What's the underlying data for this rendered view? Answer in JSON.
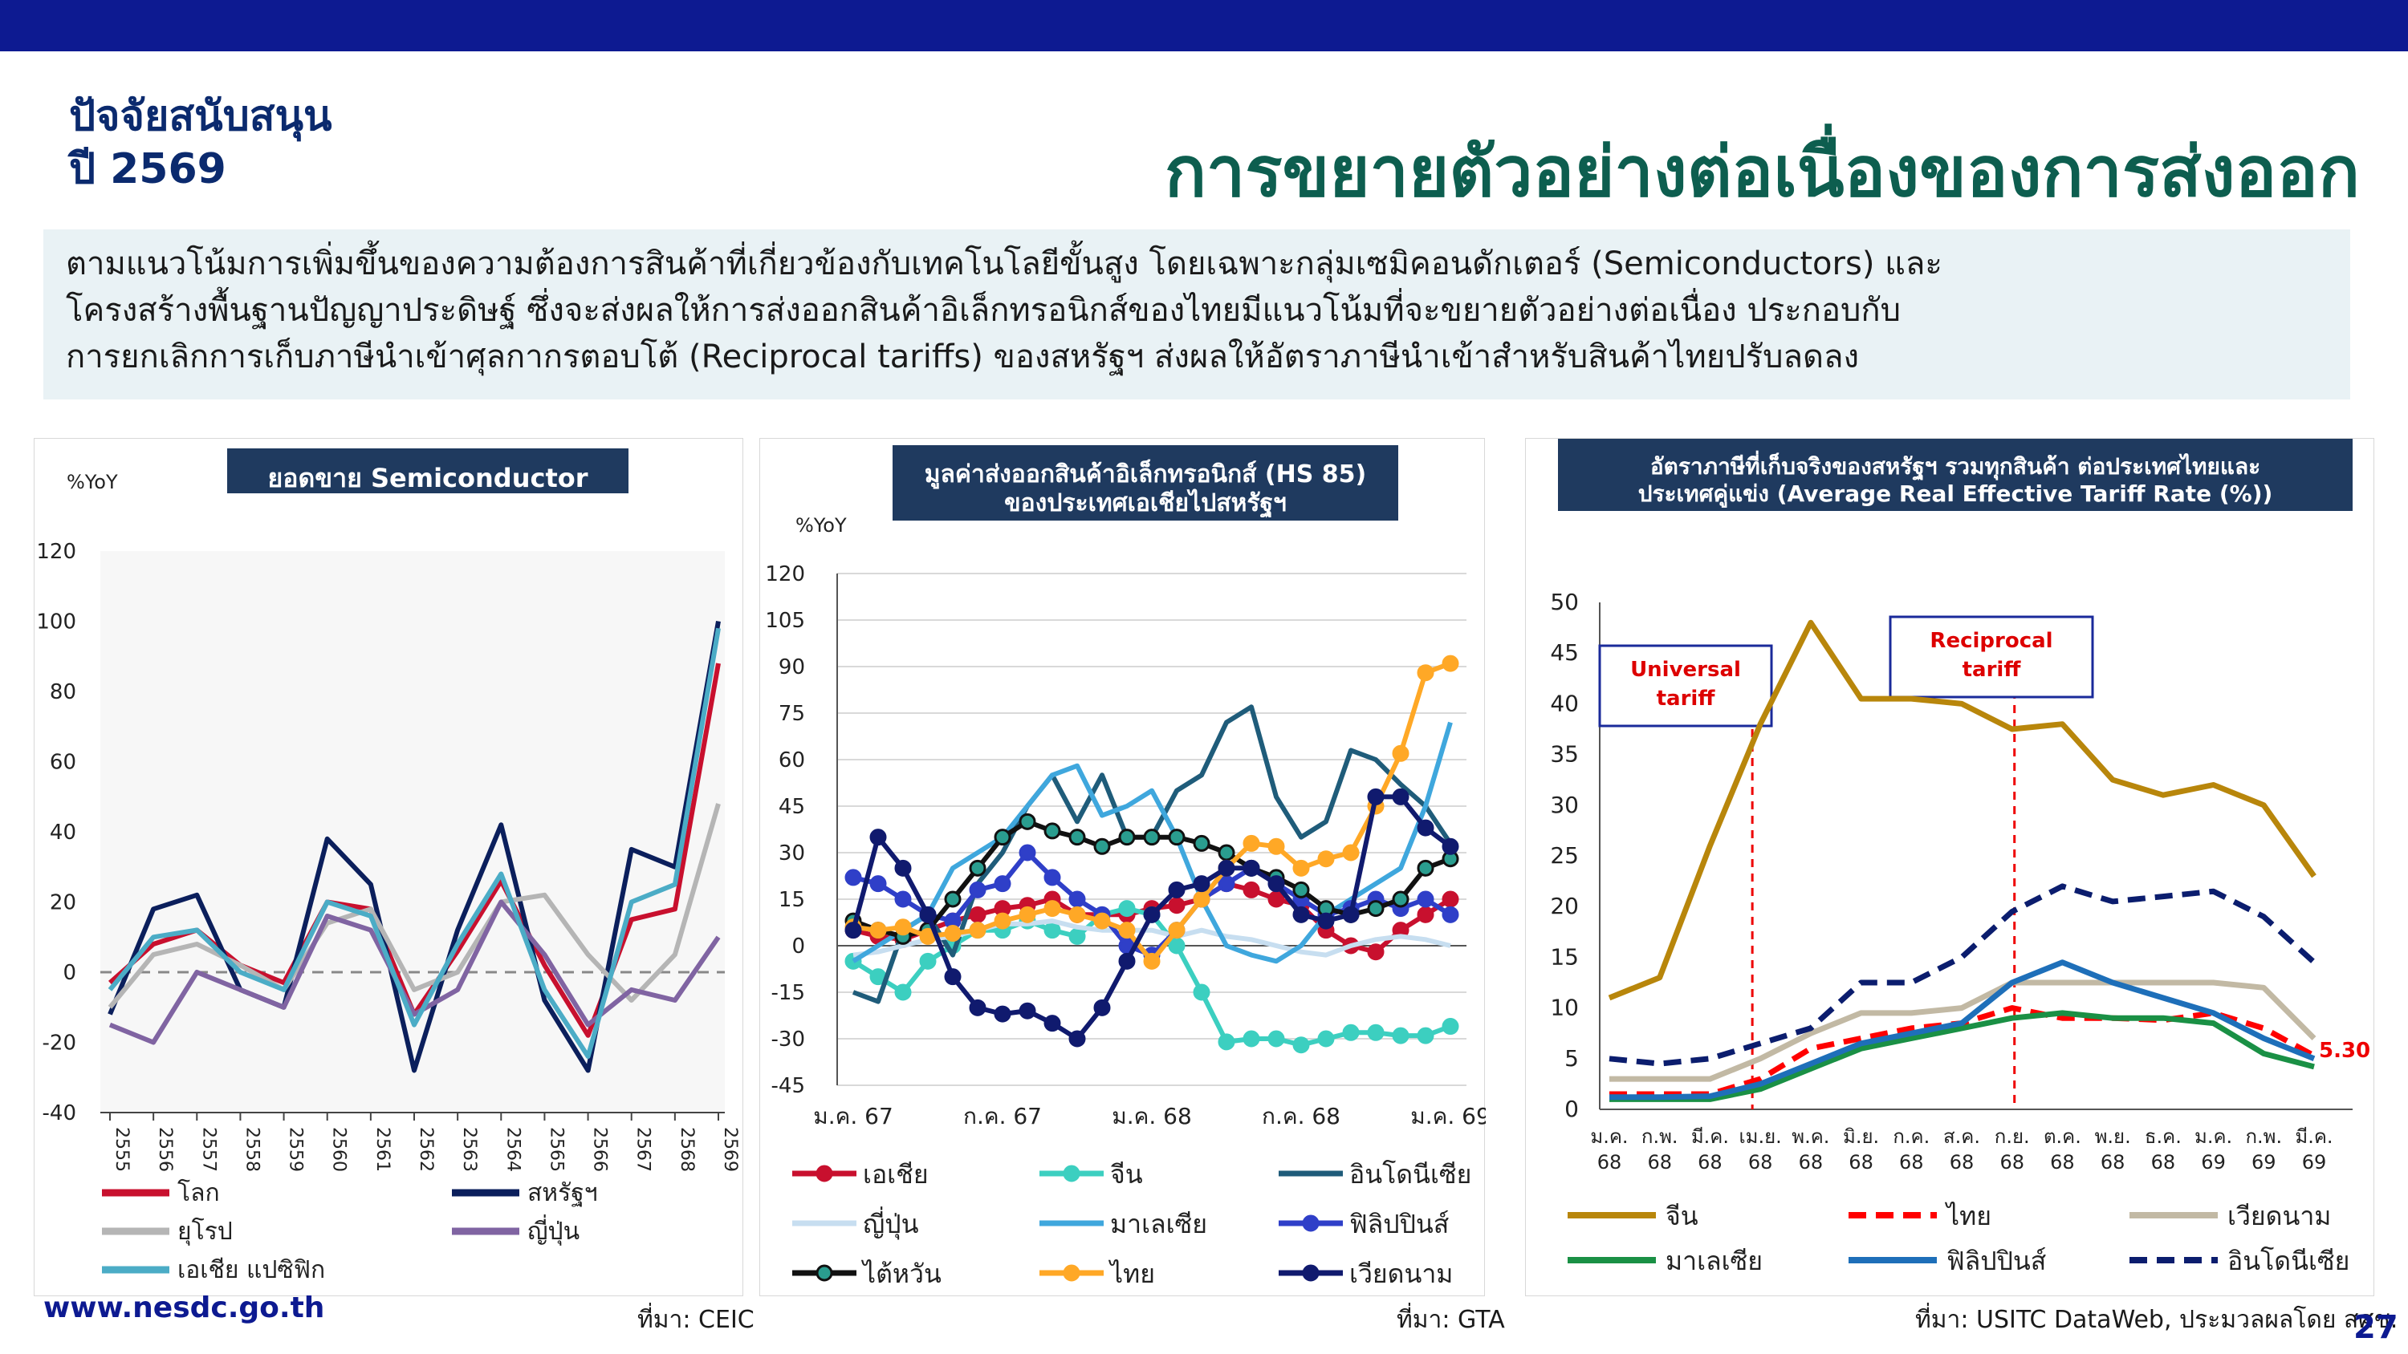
{
  "header": {
    "support_line1": "ปัจจัยสนับสนุน",
    "support_line2": "ปี 2569",
    "headline": "การขยายตัวอย่างต่อเนื่องของการส่งออก",
    "intro_lines": [
      "ตามแนวโน้มการเพิ่มขึ้นของความต้องการสินค้าที่เกี่ยวข้องกับเทคโนโลยีขั้นสูง โดยเฉพาะกลุ่มเซมิคอนดักเตอร์ (Semiconductors) และ",
      "โครงสร้างพื้นฐานปัญญาประดิษฐ์ ซึ่งจะส่งผลให้การส่งออกสินค้าอิเล็กทรอนิกส์ของไทยมีแนวโน้มที่จะขยายตัวอย่างต่อเนื่อง ประกอบกับ",
      "การยกเลิกการเก็บภาษีนำเข้าศุลกากรตอบโต้ (Reciprocal tariffs) ของสหรัฐฯ  ส่งผลให้อัตราภาษีนำเข้าสำหรับสินค้าไทยปรับลดลง"
    ],
    "colors": {
      "topbar": "#0d1a91",
      "headline": "#0d5e4f",
      "panel_title_bg": "#1f3a5f"
    }
  },
  "footer": {
    "website": "www.nesdc.go.th",
    "source1": "ที่มา: CEIC",
    "source2": "ที่มา: GTA",
    "source3": "ที่มา: USITC DataWeb, ประมวลผลโดย สศช.",
    "page_number": "27"
  },
  "chart_data": [
    {
      "type": "line",
      "title": "ยอดขาย Semiconductor",
      "ylabel": "%YoY",
      "ylim": [
        -40,
        120
      ],
      "yticks": [
        -40,
        -20,
        0,
        20,
        40,
        60,
        80,
        100,
        120
      ],
      "categories": [
        "2555",
        "2556",
        "2557",
        "2558",
        "2559",
        "2560",
        "2561",
        "2562",
        "2563",
        "2564",
        "2565",
        "2566",
        "2567",
        "2568",
        "2569"
      ],
      "grid": false,
      "zero_line": "dashed",
      "legend_position": "bottom",
      "series": [
        {
          "name": "โลก",
          "color": "#c8102e",
          "values": [
            -3,
            8,
            12,
            2,
            -3,
            20,
            18,
            -12,
            6,
            26,
            2,
            -18,
            15,
            18,
            88
          ]
        },
        {
          "name": "สหรัฐฯ",
          "color": "#0b1f5c",
          "values": [
            -12,
            18,
            22,
            -5,
            -10,
            38,
            25,
            -28,
            12,
            42,
            -8,
            -28,
            35,
            30,
            100
          ]
        },
        {
          "name": "ยุโรป",
          "color": "#b5b5b5",
          "values": [
            -10,
            5,
            8,
            2,
            -5,
            14,
            18,
            -5,
            0,
            20,
            22,
            5,
            -8,
            5,
            48
          ]
        },
        {
          "name": "ญี่ปุ่น",
          "color": "#8064a2",
          "values": [
            -15,
            -20,
            0,
            -5,
            -10,
            16,
            12,
            -12,
            -5,
            20,
            5,
            -15,
            -5,
            -8,
            10
          ]
        },
        {
          "name": "เอเชีย แปซิฟิก",
          "color": "#4bacc6",
          "values": [
            -5,
            10,
            12,
            0,
            -5,
            20,
            16,
            -15,
            8,
            28,
            -5,
            -24,
            20,
            25,
            98
          ]
        }
      ]
    },
    {
      "type": "line",
      "title": "มูลค่าส่งออกสินค้าอิเล็กทรอนิกส์ (HS 85) ของประเทศเอเชียไปสหรัฐฯ",
      "ylabel": "%YoY",
      "ylim": [
        -45,
        120
      ],
      "yticks": [
        -45,
        -30,
        -15,
        0,
        15,
        30,
        45,
        60,
        75,
        90,
        105,
        120
      ],
      "x_tick_labels": [
        "ม.ค. 67",
        "ก.ค. 67",
        "ม.ค. 68",
        "ก.ค. 68",
        "ม.ค. 69"
      ],
      "x": [
        "ม.ค. 67",
        "ก.พ. 67",
        "มี.ค. 67",
        "เม.ย. 67",
        "พ.ค. 67",
        "มิ.ย. 67",
        "ก.ค. 67",
        "ส.ค. 67",
        "ก.ย. 67",
        "ต.ค. 67",
        "พ.ย. 67",
        "ธ.ค. 67",
        "ม.ค. 68",
        "ก.พ. 68",
        "มี.ค. 68",
        "เม.ย. 68",
        "พ.ค. 68",
        "มิ.ย. 68",
        "ก.ค. 68",
        "ส.ค. 68",
        "ก.ย. 68",
        "ต.ค. 68",
        "พ.ย. 68",
        "ธ.ค. 68",
        "ม.ค. 69"
      ],
      "grid": true,
      "legend_position": "bottom",
      "series": [
        {
          "name": "เอเชีย",
          "color": "#c8102e",
          "marker": true,
          "values": [
            5,
            3,
            2,
            5,
            8,
            10,
            12,
            13,
            15,
            10,
            10,
            10,
            12,
            13,
            15,
            20,
            18,
            15,
            13,
            5,
            0,
            -2,
            5,
            10,
            15
          ]
        },
        {
          "name": "จีน",
          "color": "#3ccfc0",
          "marker": true,
          "values": [
            -5,
            -10,
            -15,
            -5,
            0,
            5,
            5,
            8,
            5,
            3,
            10,
            12,
            10,
            0,
            -15,
            -31,
            -30,
            -30,
            -32,
            -30,
            -28,
            -28,
            -29,
            -29,
            -26
          ]
        },
        {
          "name": "อินโดนีเซีย",
          "color": "#1f5c7a",
          "marker": false,
          "values": [
            -15,
            -18,
            5,
            10,
            -3,
            20,
            30,
            45,
            55,
            40,
            55,
            35,
            35,
            50,
            55,
            72,
            77,
            48,
            35,
            40,
            63,
            60,
            52,
            45,
            33
          ]
        },
        {
          "name": "ญี่ปุ่น",
          "color": "#c7def0",
          "marker": false,
          "values": [
            -3,
            -2,
            0,
            2,
            3,
            5,
            7,
            7,
            8,
            6,
            5,
            5,
            5,
            3,
            5,
            3,
            2,
            0,
            -2,
            -3,
            0,
            2,
            3,
            2,
            0
          ]
        },
        {
          "name": "มาเลเซีย",
          "color": "#3fa7dd",
          "marker": false,
          "values": [
            -5,
            0,
            5,
            10,
            25,
            30,
            35,
            45,
            55,
            58,
            42,
            45,
            50,
            35,
            15,
            0,
            -3,
            -5,
            0,
            10,
            15,
            20,
            25,
            45,
            72
          ]
        },
        {
          "name": "ฟิลิปปินส์",
          "color": "#2f3fc8",
          "marker": true,
          "values": [
            22,
            20,
            15,
            10,
            8,
            18,
            20,
            30,
            22,
            15,
            10,
            0,
            -3,
            5,
            15,
            20,
            25,
            20,
            15,
            10,
            12,
            15,
            12,
            15,
            10
          ]
        },
        {
          "name": "ไต้หวัน",
          "color": "#111111",
          "marker": true,
          "values": [
            8,
            5,
            3,
            5,
            15,
            25,
            35,
            40,
            37,
            35,
            32,
            35,
            35,
            35,
            33,
            30,
            25,
            22,
            18,
            12,
            10,
            12,
            15,
            25,
            28
          ]
        },
        {
          "name": "ไทย",
          "color": "#ffa826",
          "marker": true,
          "values": [
            6,
            5,
            6,
            3,
            4,
            5,
            8,
            10,
            12,
            10,
            8,
            5,
            -5,
            5,
            15,
            25,
            33,
            32,
            25,
            28,
            30,
            45,
            62,
            88,
            91
          ]
        },
        {
          "name": "เวียดนาม",
          "color": "#101a6e",
          "marker": true,
          "values": [
            5,
            35,
            25,
            10,
            -10,
            -20,
            -22,
            -21,
            -25,
            -30,
            -20,
            -5,
            10,
            18,
            20,
            25,
            25,
            20,
            10,
            8,
            10,
            48,
            48,
            38,
            32
          ]
        }
      ]
    },
    {
      "type": "line",
      "title": "อัตราภาษีที่เก็บจริงของสหรัฐฯ รวมทุกสินค้า ต่อประเทศไทยและประเทศคู่แข่ง (Average Real Effective Tariff Rate (%))",
      "ylim": [
        0,
        50
      ],
      "yticks": [
        0,
        5,
        10,
        15,
        20,
        25,
        30,
        35,
        40,
        45,
        50
      ],
      "x_labels": [
        [
          "ม.ค.",
          "68"
        ],
        [
          "ก.พ.",
          "68"
        ],
        [
          "มี.ค.",
          "68"
        ],
        [
          "เม.ย.",
          "68"
        ],
        [
          "พ.ค.",
          "68"
        ],
        [
          "มิ.ย.",
          "68"
        ],
        [
          "ก.ค.",
          "68"
        ],
        [
          "ส.ค.",
          "68"
        ],
        [
          "ก.ย.",
          "68"
        ],
        [
          "ต.ค.",
          "68"
        ],
        [
          "พ.ย.",
          "68"
        ],
        [
          "ธ.ค.",
          "68"
        ],
        [
          "ม.ค.",
          "69"
        ],
        [
          "ก.พ.",
          "69"
        ],
        [
          "มี.ค.",
          "69"
        ]
      ],
      "grid": false,
      "legend_position": "bottom",
      "annotations": [
        {
          "label_lines": [
            "Universal",
            "tariff"
          ],
          "at": "เม.ย. 68"
        },
        {
          "label_lines": [
            "Reciprocal",
            "tariff"
          ],
          "at": "ส.ค. 68"
        }
      ],
      "end_label": "5.30",
      "series": [
        {
          "name": "จีน",
          "color": "#b8860b",
          "dash": false,
          "values": [
            11,
            13,
            26,
            38,
            48,
            40.5,
            40.5,
            40,
            37.5,
            38,
            32.5,
            31,
            32,
            30,
            23
          ]
        },
        {
          "name": "ไทย",
          "color": "#ff0000",
          "dash": true,
          "values": [
            1.5,
            1.5,
            1.5,
            3,
            6,
            7,
            8,
            8.5,
            10,
            9,
            9,
            8.8,
            9.5,
            8,
            5.3
          ]
        },
        {
          "name": "เวียดนาม",
          "color": "#c2b9a4",
          "dash": false,
          "values": [
            3,
            3,
            3,
            5,
            7.5,
            9.5,
            9.5,
            10,
            12.5,
            12.5,
            12.5,
            12.5,
            12.5,
            12,
            7
          ]
        },
        {
          "name": "มาเลเซีย",
          "color": "#1a9045",
          "dash": false,
          "values": [
            1,
            1,
            1,
            2,
            4,
            6,
            7,
            8,
            9,
            9.5,
            9,
            9,
            8.5,
            5.5,
            4.2
          ]
        },
        {
          "name": "ฟิลิปปินส์",
          "color": "#1e6fb9",
          "dash": false,
          "values": [
            1.2,
            1.2,
            1.3,
            2.5,
            4.5,
            6.5,
            7.5,
            8.5,
            12.5,
            14.5,
            12.5,
            11,
            9.5,
            7,
            5
          ]
        },
        {
          "name": "อินโดนีเซีย",
          "color": "#0b1d6e",
          "dash": true,
          "values": [
            5,
            4.5,
            5,
            6.5,
            8,
            12.5,
            12.5,
            15,
            19.5,
            22,
            20.5,
            21,
            21.5,
            19,
            14.5
          ]
        }
      ]
    }
  ]
}
